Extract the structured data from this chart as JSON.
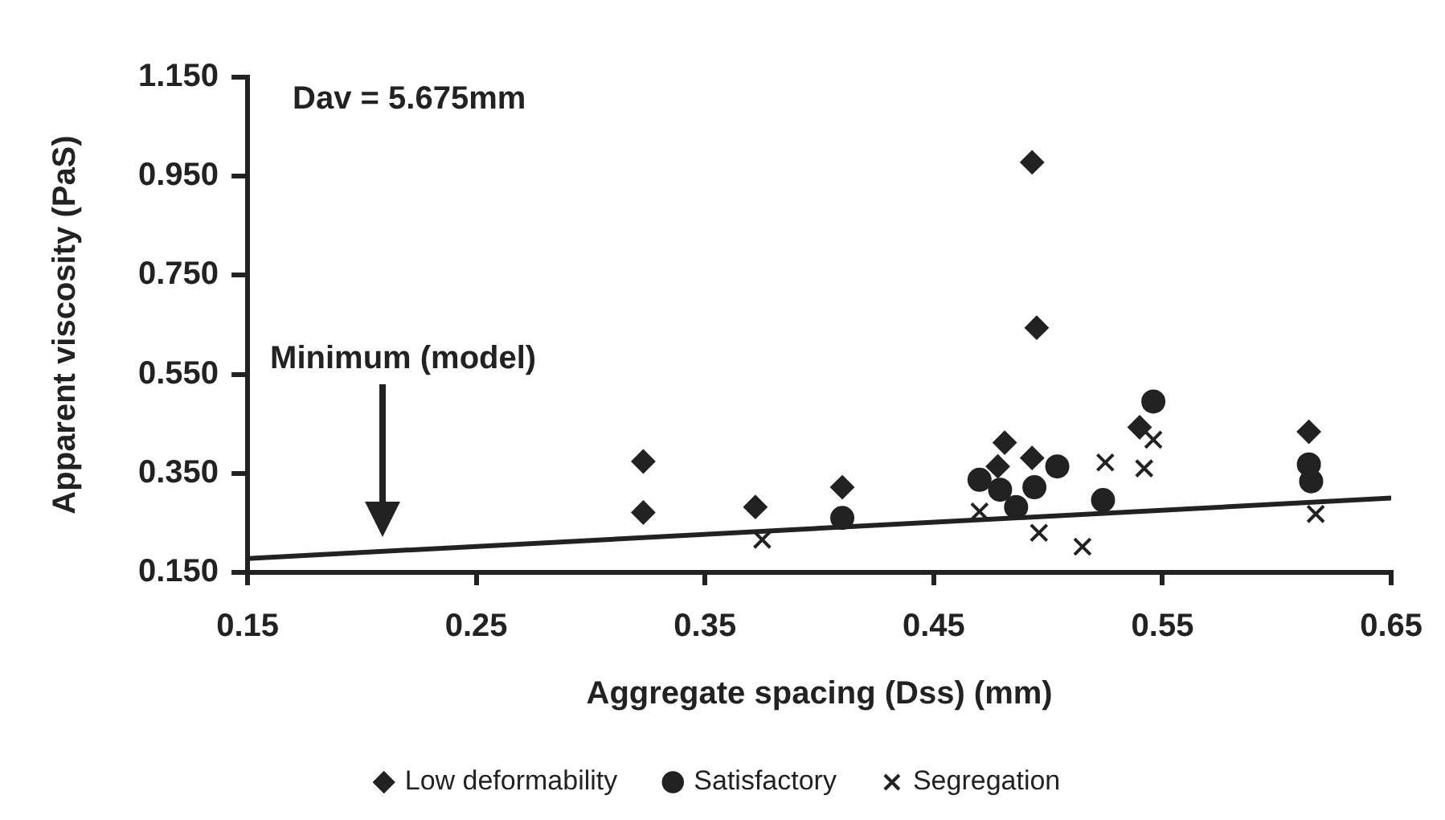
{
  "chart_data": {
    "type": "scatter",
    "xlabel": "Aggregate spacing (Dss) (mm)",
    "ylabel": "Apparent viscosity (PaS)",
    "xlim": [
      0.15,
      0.65
    ],
    "xticks": [
      0.15,
      0.25,
      0.35,
      0.45,
      0.55,
      0.65
    ],
    "ylim": [
      0.15,
      1.15
    ],
    "yticks": [
      {
        "value": 0.15,
        "label": "0.150"
      },
      {
        "value": 0.35,
        "label": "0.350"
      },
      {
        "value": 0.55,
        "label": "0.550"
      },
      {
        "value": 0.75,
        "label": "0.750"
      },
      {
        "value": 0.95,
        "label": "0.950"
      },
      {
        "value": 1.15,
        "label": "1.150"
      }
    ],
    "grid": false,
    "legend": "bottom",
    "annotations": [
      "Dav = 5.675mm",
      "Minimum (model)"
    ],
    "series": [
      {
        "name": "Low deformability",
        "color": "#222222",
        "marker": "diamond",
        "x": [
          0.323,
          0.323,
          0.372,
          0.41,
          0.478,
          0.481,
          0.493,
          0.493,
          0.495,
          0.54,
          0.614
        ],
        "values": [
          0.374,
          0.271,
          0.282,
          0.322,
          0.364,
          0.412,
          0.381,
          0.978,
          0.644,
          0.443,
          0.434
        ]
      },
      {
        "name": "Satisfactory",
        "color": "#222222",
        "marker": "circle",
        "x": [
          0.41,
          0.47,
          0.479,
          0.486,
          0.494,
          0.504,
          0.524,
          0.546,
          0.614,
          0.615
        ],
        "values": [
          0.26,
          0.337,
          0.317,
          0.282,
          0.322,
          0.364,
          0.296,
          0.495,
          0.368,
          0.334
        ]
      },
      {
        "name": "Segregation",
        "color": "#222222",
        "marker": "cross",
        "x": [
          0.375,
          0.47,
          0.496,
          0.515,
          0.525,
          0.542,
          0.546,
          0.617
        ],
        "values": [
          0.216,
          0.273,
          0.23,
          0.202,
          0.372,
          0.36,
          0.418,
          0.268
        ]
      },
      {
        "type": "line",
        "color": "#222222",
        "marker": "none",
        "x": [
          0.15,
          0.65
        ],
        "values": [
          0.178,
          0.3
        ]
      }
    ]
  }
}
